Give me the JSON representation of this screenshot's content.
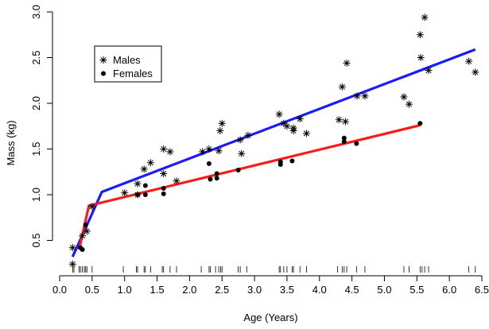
{
  "chart_data": {
    "type": "scatter",
    "title": "",
    "xlabel": "Age (Years)",
    "ylabel": "Mass (kg)",
    "xlim": [
      0.0,
      6.5
    ],
    "ylim": [
      0.2,
      3.0
    ],
    "x_ticks": [
      "0.0",
      "0.5",
      "1.0",
      "1.5",
      "2.0",
      "2.5",
      "3.0",
      "3.5",
      "4.0",
      "4.5",
      "5.0",
      "5.5",
      "6.0",
      "6.5"
    ],
    "y_ticks": [
      "0.5",
      "1.0",
      "1.5",
      "2.0",
      "2.5",
      "3.0"
    ],
    "legend_position": "top-left",
    "grid": false,
    "series": [
      {
        "name": "Males",
        "marker": "asterisk",
        "color": "#000000",
        "points": [
          [
            0.2,
            0.42
          ],
          [
            0.2,
            0.24
          ],
          [
            0.35,
            0.55
          ],
          [
            0.42,
            0.6
          ],
          [
            0.5,
            0.87
          ],
          [
            1.0,
            1.02
          ],
          [
            1.2,
            1.12
          ],
          [
            1.2,
            1.0
          ],
          [
            1.3,
            1.28
          ],
          [
            1.4,
            1.35
          ],
          [
            1.6,
            1.5
          ],
          [
            1.6,
            1.23
          ],
          [
            1.7,
            1.47
          ],
          [
            1.8,
            1.15
          ],
          [
            2.2,
            1.47
          ],
          [
            2.3,
            1.5
          ],
          [
            2.45,
            1.48
          ],
          [
            2.47,
            1.7
          ],
          [
            2.5,
            1.78
          ],
          [
            2.78,
            1.6
          ],
          [
            2.8,
            1.45
          ],
          [
            2.9,
            1.65
          ],
          [
            3.38,
            1.88
          ],
          [
            3.45,
            1.78
          ],
          [
            3.5,
            1.75
          ],
          [
            3.6,
            1.7
          ],
          [
            3.6,
            1.73
          ],
          [
            3.7,
            1.83
          ],
          [
            3.8,
            1.67
          ],
          [
            4.3,
            1.82
          ],
          [
            4.35,
            2.18
          ],
          [
            4.4,
            1.8
          ],
          [
            4.42,
            2.44
          ],
          [
            4.58,
            2.08
          ],
          [
            4.7,
            2.08
          ],
          [
            5.3,
            2.07
          ],
          [
            5.38,
            1.99
          ],
          [
            5.55,
            2.75
          ],
          [
            5.56,
            2.5
          ],
          [
            5.62,
            2.94
          ],
          [
            5.68,
            2.36
          ],
          [
            6.3,
            2.46
          ],
          [
            6.4,
            2.34
          ]
        ]
      },
      {
        "name": "Females",
        "marker": "dot",
        "color": "#000000",
        "points": [
          [
            0.32,
            0.42
          ],
          [
            0.35,
            0.4
          ],
          [
            0.4,
            0.67
          ],
          [
            1.2,
            1.0
          ],
          [
            1.32,
            1.1
          ],
          [
            1.32,
            1.0
          ],
          [
            1.6,
            1.07
          ],
          [
            1.6,
            1.01
          ],
          [
            2.3,
            1.34
          ],
          [
            2.32,
            1.17
          ],
          [
            2.42,
            1.18
          ],
          [
            2.42,
            1.23
          ],
          [
            2.75,
            1.27
          ],
          [
            3.4,
            1.36
          ],
          [
            3.4,
            1.33
          ],
          [
            3.58,
            1.37
          ],
          [
            4.38,
            1.62
          ],
          [
            4.38,
            1.58
          ],
          [
            4.57,
            1.56
          ],
          [
            5.55,
            1.78
          ]
        ]
      }
    ],
    "fit_lines": [
      {
        "series": "Males",
        "color": "#1a1aff",
        "points": [
          [
            0.2,
            0.32
          ],
          [
            0.65,
            1.03
          ],
          [
            6.4,
            2.59
          ]
        ]
      },
      {
        "series": "Females",
        "color": "#ff1a1a",
        "points": [
          [
            0.3,
            0.4
          ],
          [
            0.45,
            0.88
          ],
          [
            5.55,
            1.76
          ]
        ]
      }
    ],
    "rug_x": [
      0.2,
      0.22,
      0.3,
      0.32,
      0.35,
      0.38,
      0.4,
      0.42,
      0.5,
      0.98,
      1.18,
      1.2,
      1.3,
      1.32,
      1.4,
      1.58,
      1.6,
      1.7,
      1.8,
      2.18,
      2.3,
      2.32,
      2.4,
      2.45,
      2.48,
      2.5,
      2.75,
      2.78,
      2.88,
      3.38,
      3.4,
      3.45,
      3.5,
      3.58,
      3.6,
      3.7,
      3.8,
      4.28,
      4.35,
      4.38,
      4.42,
      4.57,
      4.7,
      5.3,
      5.38,
      5.55,
      5.58,
      5.62,
      5.68,
      6.3,
      6.4
    ]
  }
}
